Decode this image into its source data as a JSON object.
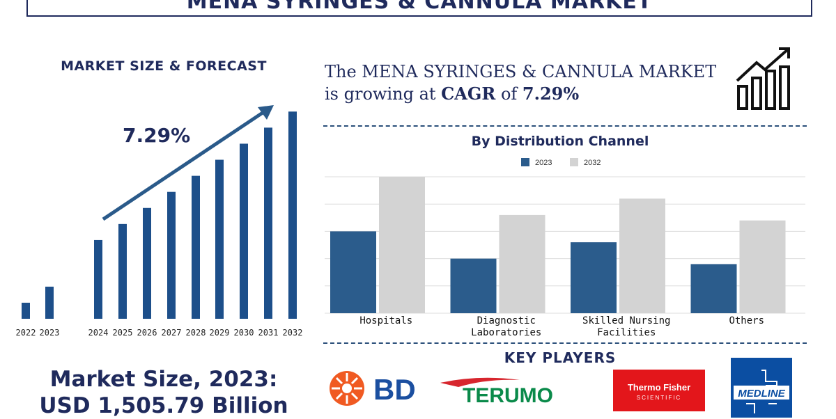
{
  "title": "MENA SYRINGES & CANNULA MARKET",
  "left_panel": {
    "heading": "MARKET SIZE & FORECAST",
    "cagr_label": "7.29%",
    "market_size_line1": "Market Size, 2023:",
    "market_size_line2": "USD 1,505.79 Billion"
  },
  "headline": {
    "line1": "The MENA SYRINGES & CANNULA MARKET",
    "line2_prefix": "is growing at ",
    "line2_bold": "CAGR",
    "line2_mid": " of ",
    "line2_value": "7.29%"
  },
  "key_players_title": "KEY PLAYERS",
  "key_players": {
    "bd": "BD",
    "terumo": "TERUMO",
    "thermo_line1": "Thermo Fisher",
    "thermo_line2": "SCIENTIFIC",
    "medline": "MEDLINE"
  },
  "colors": {
    "navy": "#1f2a5c",
    "bar_blue": "#1d4f8a",
    "series_2023": "#2b5c8c",
    "series_2032": "#d3d3d3",
    "bd_orange": "#f05a22",
    "bd_blue": "#1b4fa0",
    "terumo_green": "#0a8a4a",
    "terumo_red": "#d7262e",
    "thermo_red": "#e3161b",
    "medline_blue": "#0b4ea2"
  },
  "chart_data": [
    {
      "type": "bar",
      "title": "MARKET SIZE & FORECAST",
      "categories": [
        "2022",
        "2023",
        "2024",
        "2025",
        "2026",
        "2027",
        "2028",
        "2029",
        "2030",
        "2031",
        "2032"
      ],
      "values": [
        10,
        20,
        49,
        59,
        69,
        79,
        89,
        99,
        109,
        119,
        129
      ],
      "annotation": "7.29%",
      "grid": false,
      "y_axis_shown": false
    },
    {
      "type": "bar",
      "title": "By Distribution Channel",
      "categories": [
        "Hospitals",
        "Diagnostic\nLaboratories",
        "Skilled Nursing\nFacilities",
        "Others"
      ],
      "series": [
        {
          "name": "2023",
          "values": [
            60,
            40,
            52,
            36
          ]
        },
        {
          "name": "2032",
          "values": [
            100,
            72,
            84,
            68
          ]
        }
      ],
      "ylim": [
        0,
        100
      ],
      "grid": true,
      "legend": "top-center"
    }
  ]
}
